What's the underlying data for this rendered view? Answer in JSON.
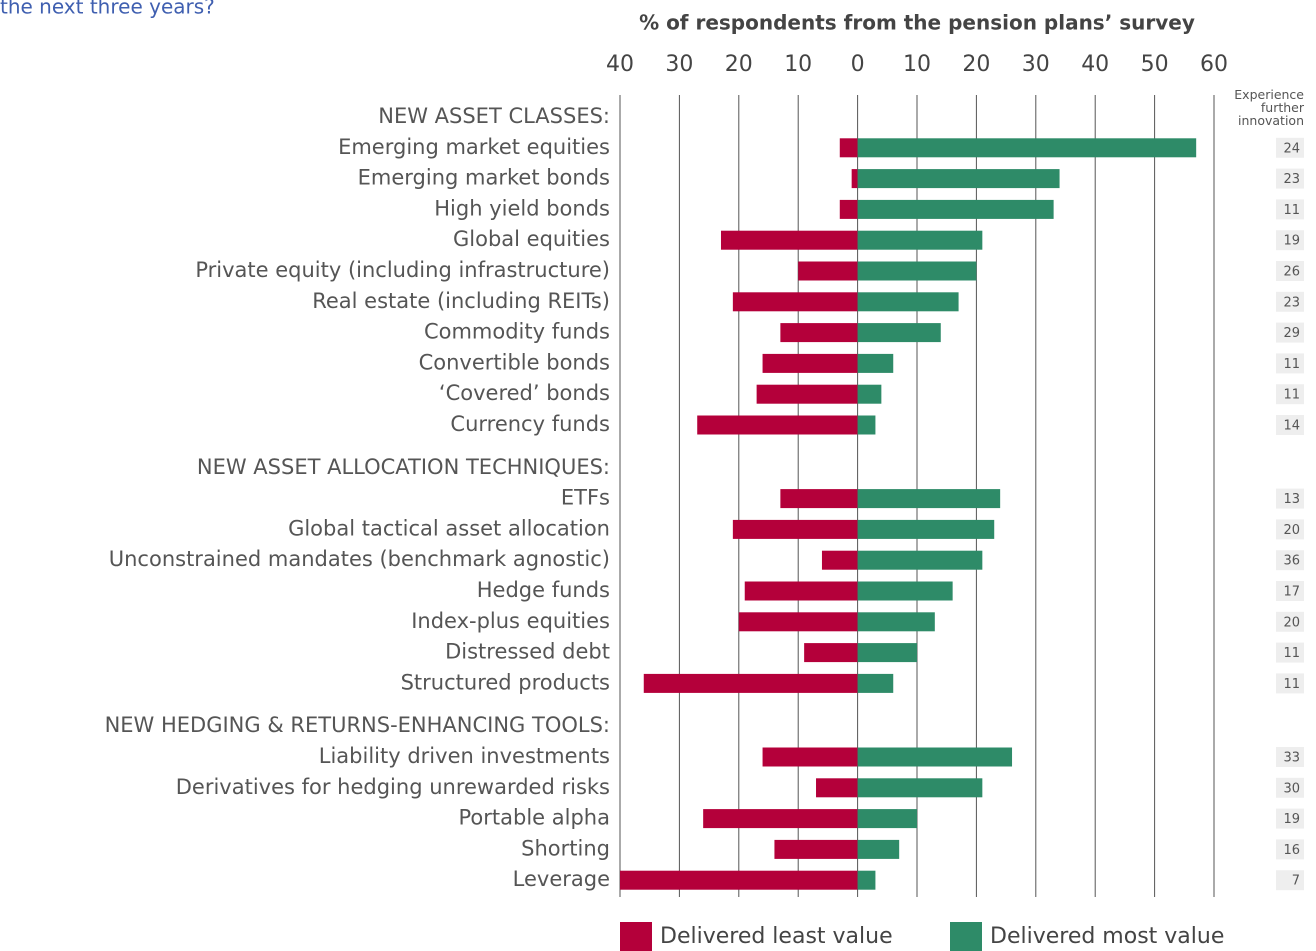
{
  "chart_data": {
    "type": "diverging-bar",
    "question_fragment": "the next three years?",
    "x_axis_title": "% of respondents from the pension plans’ survey",
    "xlim": [
      -40,
      60
    ],
    "xticks": [
      {
        "value": -40,
        "label": "40"
      },
      {
        "value": -30,
        "label": "30"
      },
      {
        "value": -20,
        "label": "20"
      },
      {
        "value": -10,
        "label": "10"
      },
      0,
      10,
      20,
      30,
      40,
      50,
      60
    ],
    "grid": true,
    "groups": [
      {
        "title": "NEW ASSET CLASSES:",
        "categories": [
          "Emerging market equities",
          "Emerging market bonds",
          "High yield bonds",
          "Global equities",
          "Private equity (including infrastructure)",
          "Real estate (including REITs)",
          "Commodity funds",
          "Convertible bonds",
          "‘Covered’ bonds",
          "Currency funds"
        ]
      },
      {
        "title": "NEW ASSET ALLOCATION TECHNIQUES:",
        "categories": [
          "ETFs",
          "Global tactical asset allocation",
          "Unconstrained mandates (benchmark agnostic)",
          "Hedge funds",
          "Index-plus equities",
          "Distressed debt",
          "Structured products"
        ]
      },
      {
        "title": "NEW HEDGING & RETURNS-ENHANCING TOOLS:",
        "categories": [
          "Liability driven investments",
          "Derivatives for hedging unrewarded risks",
          "Portable alpha",
          "Shorting",
          "Leverage"
        ]
      }
    ],
    "series": [
      {
        "name": "Delivered least value",
        "color": "#b4003a",
        "values": [
          [
            -3,
            -1,
            -3,
            -23,
            -10,
            -21,
            -13,
            -16,
            -17,
            -27
          ],
          [
            -13,
            -21,
            -6,
            -19,
            -20,
            -9,
            -36
          ],
          [
            -16,
            -7,
            -26,
            -14,
            -40
          ]
        ]
      },
      {
        "name": "Delivered most value",
        "color": "#2e8b68",
        "values": [
          [
            57,
            34,
            33,
            21,
            20,
            17,
            14,
            6,
            4,
            3
          ],
          [
            24,
            23,
            21,
            16,
            13,
            10,
            6
          ],
          [
            26,
            21,
            10,
            7,
            3
          ]
        ]
      }
    ],
    "innovation": {
      "title": "Experience further innovation",
      "values": [
        [
          24,
          23,
          11,
          19,
          26,
          23,
          29,
          11,
          11,
          14
        ],
        [
          13,
          20,
          36,
          17,
          20,
          11,
          11
        ],
        [
          33,
          30,
          19,
          16,
          7
        ]
      ]
    }
  }
}
